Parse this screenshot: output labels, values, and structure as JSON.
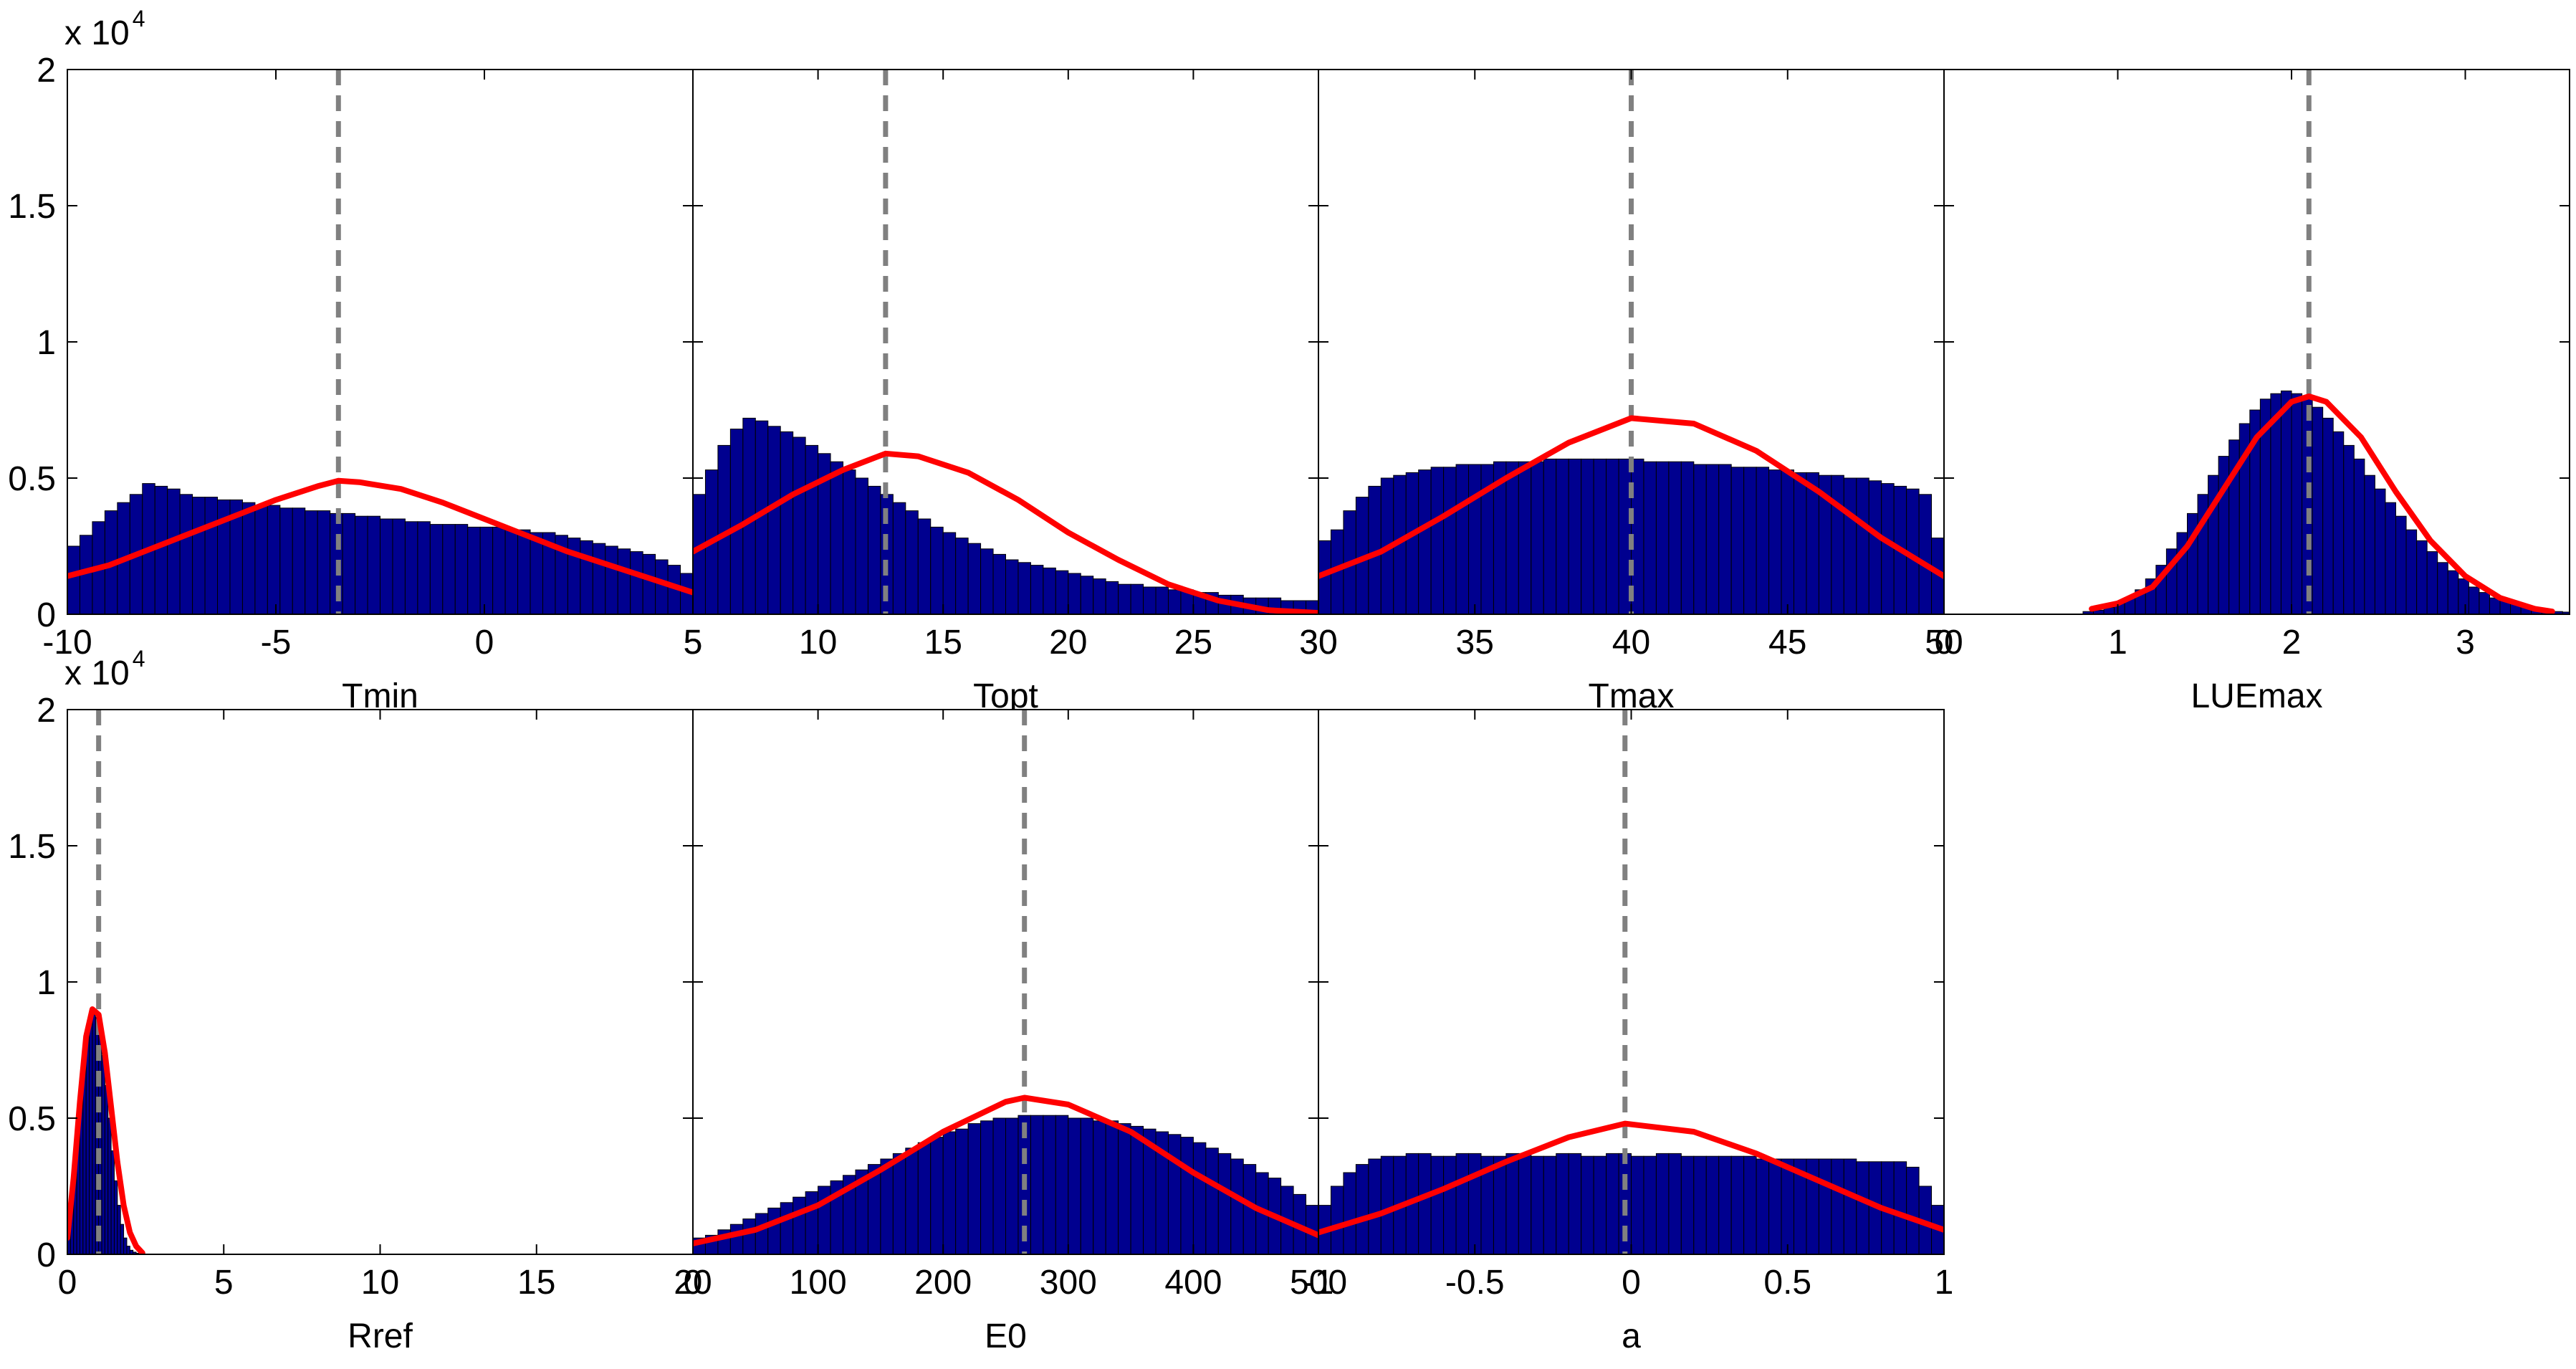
{
  "figure": {
    "y_exponent_prefix": "x 10",
    "y_exponent_power": "4"
  },
  "colors": {
    "bar_fill": "#00008f",
    "bar_edge": "#000000",
    "curve": "#ff0000",
    "marker_line": "#808080"
  },
  "chart_data": [
    {
      "type": "bar",
      "xlabel": "Tmin",
      "xlim": [
        -10,
        5
      ],
      "ylim": [
        0,
        20000
      ],
      "xticks": [
        -10,
        -5,
        0,
        5
      ],
      "xtick_labels": [
        "-10",
        "-5",
        "0",
        "5"
      ],
      "yticks": [
        0,
        5000,
        10000,
        15000,
        20000
      ],
      "ytick_labels": [
        "0",
        "0.5",
        "1",
        "1.5",
        "2"
      ],
      "show_y_exponent": true,
      "marker_x": -3.5,
      "histogram": {
        "bin_start": -10,
        "bin_width": 0.3,
        "counts": [
          2500,
          2900,
          3400,
          3800,
          4100,
          4400,
          4800,
          4700,
          4600,
          4400,
          4300,
          4300,
          4200,
          4200,
          4100,
          4000,
          4000,
          3900,
          3900,
          3800,
          3800,
          3700,
          3700,
          3600,
          3600,
          3500,
          3500,
          3400,
          3400,
          3300,
          3300,
          3300,
          3200,
          3200,
          3200,
          3100,
          3100,
          3000,
          3000,
          2900,
          2800,
          2700,
          2600,
          2500,
          2400,
          2300,
          2200,
          2000,
          1800,
          1500
        ]
      },
      "curve": {
        "x": [
          -10,
          -9,
          -8,
          -7,
          -6,
          -5,
          -4,
          -3.5,
          -3,
          -2,
          -1,
          0,
          1,
          2,
          3,
          4,
          5
        ],
        "y": [
          1400,
          1800,
          2400,
          3000,
          3600,
          4200,
          4700,
          4900,
          4850,
          4600,
          4100,
          3500,
          2900,
          2300,
          1800,
          1300,
          800
        ]
      }
    },
    {
      "type": "bar",
      "xlabel": "Topt",
      "xlim": [
        5,
        30
      ],
      "ylim": [
        0,
        20000
      ],
      "xticks": [
        5,
        10,
        15,
        20,
        25,
        30
      ],
      "xtick_labels": [
        "5",
        "10",
        "15",
        "20",
        "25",
        "30"
      ],
      "yticks": [
        0,
        5000,
        10000,
        15000,
        20000
      ],
      "ytick_labels": [
        "",
        "",
        "",
        "",
        ""
      ],
      "show_y_exponent": false,
      "marker_x": 12.7,
      "histogram": {
        "bin_start": 5,
        "bin_width": 0.5,
        "counts": [
          4400,
          5300,
          6200,
          6800,
          7200,
          7100,
          6900,
          6700,
          6500,
          6200,
          5900,
          5600,
          5300,
          5000,
          4700,
          4400,
          4100,
          3800,
          3500,
          3200,
          3000,
          2800,
          2600,
          2400,
          2200,
          2000,
          1900,
          1800,
          1700,
          1600,
          1500,
          1400,
          1300,
          1200,
          1100,
          1100,
          1000,
          1000,
          900,
          900,
          800,
          800,
          700,
          700,
          600,
          600,
          600,
          500,
          500,
          500
        ]
      },
      "curve": {
        "x": [
          5,
          7,
          9,
          11,
          12.7,
          14,
          16,
          18,
          20,
          22,
          24,
          26,
          28,
          30
        ],
        "y": [
          2300,
          3300,
          4400,
          5300,
          5900,
          5800,
          5200,
          4200,
          3000,
          2000,
          1100,
          500,
          150,
          50
        ]
      }
    },
    {
      "type": "bar",
      "xlabel": "Tmax",
      "xlim": [
        30,
        50
      ],
      "ylim": [
        0,
        20000
      ],
      "xticks": [
        30,
        35,
        40,
        45,
        50
      ],
      "xtick_labels": [
        "30",
        "35",
        "40",
        "45",
        "50"
      ],
      "yticks": [
        0,
        5000,
        10000,
        15000,
        20000
      ],
      "ytick_labels": [
        "",
        "",
        "",
        "",
        ""
      ],
      "show_y_exponent": false,
      "marker_x": 40,
      "histogram": {
        "bin_start": 30,
        "bin_width": 0.4,
        "counts": [
          2700,
          3100,
          3800,
          4300,
          4700,
          5000,
          5100,
          5200,
          5300,
          5400,
          5400,
          5500,
          5500,
          5500,
          5600,
          5600,
          5600,
          5600,
          5700,
          5700,
          5700,
          5700,
          5700,
          5700,
          5700,
          5700,
          5600,
          5600,
          5600,
          5600,
          5500,
          5500,
          5500,
          5400,
          5400,
          5400,
          5300,
          5300,
          5200,
          5200,
          5100,
          5100,
          5000,
          5000,
          4900,
          4800,
          4700,
          4600,
          4400,
          2800
        ]
      },
      "curve": {
        "x": [
          30,
          32,
          34,
          36,
          38,
          40,
          42,
          44,
          46,
          48,
          50
        ],
        "y": [
          1400,
          2300,
          3600,
          5000,
          6300,
          7200,
          7000,
          6000,
          4500,
          2800,
          1400
        ]
      }
    },
    {
      "type": "bar",
      "xlabel": "LUEmax",
      "xlim": [
        0,
        3.6
      ],
      "ylim": [
        0,
        20000
      ],
      "xticks": [
        0,
        1,
        2,
        3
      ],
      "xtick_labels": [
        "0",
        "1",
        "2",
        "3"
      ],
      "yticks": [
        0,
        5000,
        10000,
        15000,
        20000
      ],
      "ytick_labels": [
        "",
        "",
        "",
        "",
        ""
      ],
      "show_y_exponent": false,
      "marker_x": 2.1,
      "histogram": {
        "bin_start": 0.8,
        "bin_width": 0.06,
        "counts": [
          100,
          150,
          250,
          400,
          600,
          900,
          1300,
          1800,
          2400,
          3000,
          3700,
          4400,
          5100,
          5800,
          6400,
          7000,
          7500,
          7900,
          8100,
          8200,
          8100,
          7900,
          7600,
          7200,
          6700,
          6200,
          5700,
          5100,
          4600,
          4100,
          3600,
          3100,
          2700,
          2300,
          1900,
          1600,
          1300,
          1000,
          800,
          600,
          500,
          400,
          300,
          200,
          150,
          100,
          80
        ]
      },
      "curve": {
        "x": [
          0.85,
          1.0,
          1.2,
          1.4,
          1.6,
          1.8,
          2.0,
          2.1,
          2.2,
          2.4,
          2.6,
          2.8,
          3.0,
          3.2,
          3.4,
          3.5
        ],
        "y": [
          200,
          400,
          1000,
          2500,
          4500,
          6500,
          7800,
          8000,
          7800,
          6500,
          4500,
          2700,
          1400,
          600,
          200,
          100
        ]
      }
    },
    {
      "type": "bar",
      "xlabel": "Rref",
      "xlim": [
        0,
        20
      ],
      "ylim": [
        0,
        20000
      ],
      "xticks": [
        0,
        5,
        10,
        15,
        20
      ],
      "xtick_labels": [
        "0",
        "5",
        "10",
        "15",
        "20"
      ],
      "yticks": [
        0,
        5000,
        10000,
        15000,
        20000
      ],
      "ytick_labels": [
        "0",
        "0.5",
        "1",
        "1.5",
        "2"
      ],
      "show_y_exponent": true,
      "marker_x": 1.0,
      "histogram": {
        "bin_start": 0,
        "bin_width": 0.1,
        "counts": [
          1000,
          2200,
          3600,
          5100,
          6500,
          7600,
          8300,
          8700,
          8800,
          8700,
          8200,
          7300,
          6200,
          5000,
          3800,
          2700,
          1800,
          1100,
          600,
          300,
          150,
          80,
          40
        ]
      },
      "curve": {
        "x": [
          0,
          0.2,
          0.4,
          0.6,
          0.8,
          1.0,
          1.2,
          1.4,
          1.6,
          1.8,
          2.0,
          2.2,
          2.4
        ],
        "y": [
          600,
          2800,
          5600,
          8000,
          9000,
          8800,
          7400,
          5400,
          3400,
          1800,
          800,
          300,
          50
        ]
      }
    },
    {
      "type": "bar",
      "xlabel": "E0",
      "xlim": [
        0,
        500
      ],
      "ylim": [
        0,
        20000
      ],
      "xticks": [
        0,
        100,
        200,
        300,
        400,
        500
      ],
      "xtick_labels": [
        "0",
        "100",
        "200",
        "300",
        "400",
        "500"
      ],
      "yticks": [
        0,
        5000,
        10000,
        15000,
        20000
      ],
      "ytick_labels": [
        "",
        "",
        "",
        "",
        ""
      ],
      "show_y_exponent": false,
      "marker_x": 265,
      "histogram": {
        "bin_start": 0,
        "bin_width": 10,
        "counts": [
          600,
          700,
          900,
          1100,
          1300,
          1500,
          1700,
          1900,
          2100,
          2300,
          2500,
          2700,
          2900,
          3100,
          3300,
          3500,
          3700,
          3900,
          4100,
          4300,
          4500,
          4600,
          4800,
          4900,
          5000,
          5000,
          5100,
          5100,
          5100,
          5100,
          5000,
          5000,
          4900,
          4900,
          4800,
          4700,
          4600,
          4500,
          4400,
          4300,
          4100,
          3900,
          3700,
          3500,
          3300,
          3000,
          2800,
          2500,
          2200,
          1800
        ]
      },
      "curve": {
        "x": [
          0,
          50,
          100,
          150,
          200,
          250,
          265,
          300,
          350,
          400,
          450,
          500
        ],
        "y": [
          400,
          900,
          1800,
          3100,
          4500,
          5600,
          5750,
          5500,
          4500,
          3000,
          1700,
          700
        ]
      }
    },
    {
      "type": "bar",
      "xlabel": "a",
      "xlim": [
        -1,
        1
      ],
      "ylim": [
        0,
        20000
      ],
      "xticks": [
        -1,
        -0.5,
        0,
        0.5,
        1
      ],
      "xtick_labels": [
        "-1",
        "-0.5",
        "0",
        "0.5",
        "1"
      ],
      "yticks": [
        0,
        5000,
        10000,
        15000,
        20000
      ],
      "ytick_labels": [
        "",
        "",
        "",
        "",
        ""
      ],
      "show_y_exponent": false,
      "marker_x": -0.02,
      "histogram": {
        "bin_start": -1,
        "bin_width": 0.04,
        "counts": [
          1800,
          2500,
          3000,
          3300,
          3500,
          3600,
          3600,
          3700,
          3700,
          3600,
          3600,
          3700,
          3700,
          3600,
          3600,
          3700,
          3700,
          3600,
          3600,
          3700,
          3700,
          3600,
          3600,
          3700,
          3700,
          3600,
          3600,
          3700,
          3700,
          3600,
          3600,
          3600,
          3600,
          3600,
          3600,
          3500,
          3500,
          3500,
          3500,
          3500,
          3500,
          3500,
          3500,
          3400,
          3400,
          3400,
          3400,
          3200,
          2500,
          1800
        ]
      },
      "curve": {
        "x": [
          -1,
          -0.8,
          -0.6,
          -0.4,
          -0.2,
          -0.02,
          0.2,
          0.4,
          0.6,
          0.8,
          1.0
        ],
        "y": [
          800,
          1500,
          2400,
          3400,
          4300,
          4800,
          4500,
          3700,
          2700,
          1700,
          900
        ]
      }
    }
  ]
}
